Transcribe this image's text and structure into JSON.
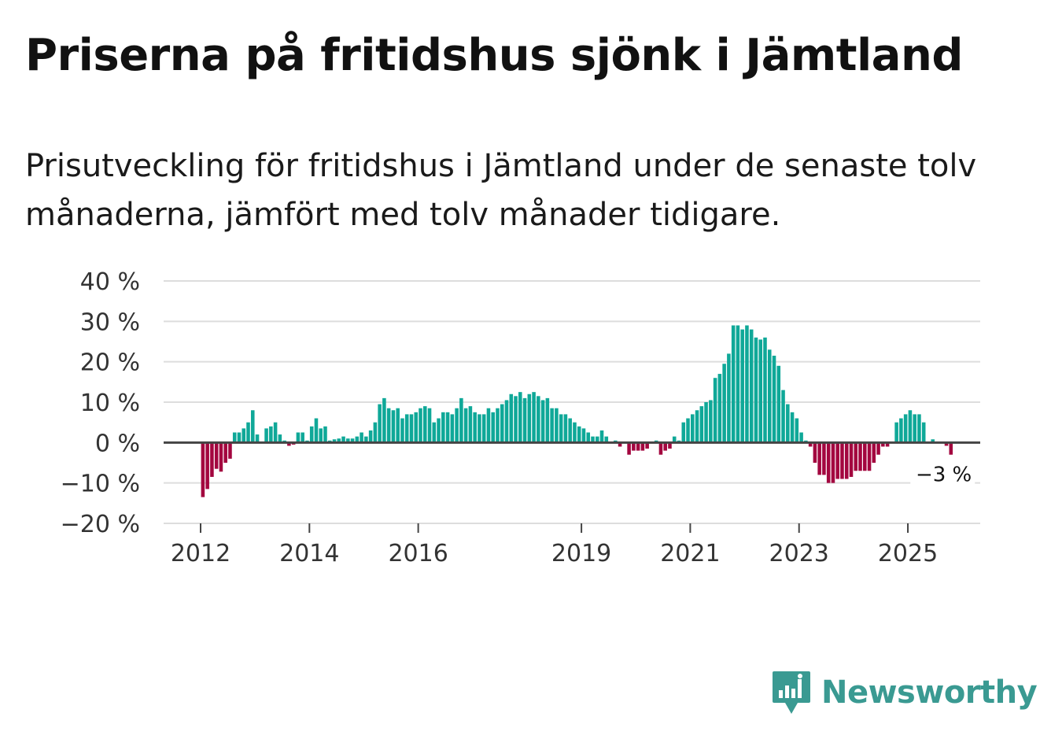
{
  "header": {
    "title": "Priserna på fritidshus sjönk i Jämtland",
    "subtitle": "Prisutveckling för fritidshus i Jämtland under de senaste tolv månaderna, jämfört med tolv månader tidigare."
  },
  "brand": {
    "name": "Newsworthy"
  },
  "colors": {
    "positive": "#0fa898",
    "negative": "#a3063f",
    "grid": "#dddddd",
    "zero": "#444444",
    "brand": "#3a9a92"
  },
  "chart_data": {
    "type": "bar",
    "title": "Priserna på fritidshus sjönk i Jämtland",
    "xlabel": "",
    "ylabel": "",
    "ylim": [
      -20,
      40
    ],
    "y_ticks": [
      40,
      30,
      20,
      10,
      0,
      -10,
      -20
    ],
    "y_tick_labels": [
      "40 %",
      "30 %",
      "20 %",
      "10 %",
      "0 %",
      "−10 %",
      "−20 %"
    ],
    "x_ticks": [
      {
        "label": "2012",
        "index": 0
      },
      {
        "label": "2014",
        "index": 24
      },
      {
        "label": "2016",
        "index": 48
      },
      {
        "label": "2019",
        "index": 84
      },
      {
        "label": "2021",
        "index": 108
      },
      {
        "label": "2023",
        "index": 132
      },
      {
        "label": "2025",
        "index": 156
      }
    ],
    "start": "2012-01",
    "end": "2025-08",
    "annotation": {
      "text": "−3 %",
      "index": 163
    },
    "values": [
      -13.5,
      -11.5,
      -8.5,
      -6.5,
      -7.2,
      -5.0,
      -4.0,
      2.5,
      2.5,
      3.5,
      5.0,
      8.0,
      2.0,
      0.0,
      3.5,
      4.0,
      5.0,
      2.0,
      0.5,
      -0.8,
      -0.5,
      2.5,
      2.5,
      0.5,
      4.0,
      6.0,
      3.5,
      4.0,
      0.5,
      0.8,
      1.0,
      1.5,
      1.0,
      1.0,
      1.5,
      2.5,
      1.5,
      3.0,
      5.0,
      9.5,
      11.0,
      8.5,
      8.0,
      8.5,
      6.0,
      7.0,
      7.0,
      7.5,
      8.5,
      9.0,
      8.5,
      5.0,
      6.0,
      7.5,
      7.5,
      7.0,
      8.5,
      11.0,
      8.5,
      9.0,
      7.5,
      7.0,
      7.0,
      8.5,
      7.5,
      8.5,
      9.5,
      10.5,
      12.0,
      11.5,
      12.5,
      11.0,
      12.0,
      12.5,
      11.5,
      10.5,
      11.0,
      8.5,
      8.5,
      7.0,
      7.0,
      6.0,
      5.0,
      4.0,
      3.5,
      2.5,
      1.5,
      1.5,
      3.0,
      1.5,
      0.0,
      0.5,
      -1.0,
      0.0,
      -3.0,
      -2.0,
      -2.0,
      -2.0,
      -1.5,
      0.0,
      0.5,
      -3.0,
      -2.0,
      -1.5,
      1.5,
      0.5,
      5.0,
      6.0,
      7.0,
      8.0,
      9.0,
      10.0,
      10.5,
      16.0,
      17.0,
      19.5,
      22.0,
      29.0,
      29.0,
      28.0,
      29.0,
      28.0,
      26.0,
      25.5,
      26.0,
      23.0,
      21.5,
      19.0,
      13.0,
      9.5,
      7.5,
      6.0,
      2.5,
      0.5,
      -1.0,
      -5.0,
      -8.0,
      -8.0,
      -10.0,
      -10.0,
      -9.0,
      -9.0,
      -9.0,
      -8.5,
      -7.0,
      -7.0,
      -7.0,
      -7.0,
      -5.0,
      -3.0,
      -1.0,
      -1.0,
      0.0,
      5.0,
      6.0,
      7.0,
      8.0,
      7.0,
      7.0,
      5.0,
      0.0,
      0.8,
      0.0,
      0.0,
      -0.8,
      -3.0
    ]
  }
}
